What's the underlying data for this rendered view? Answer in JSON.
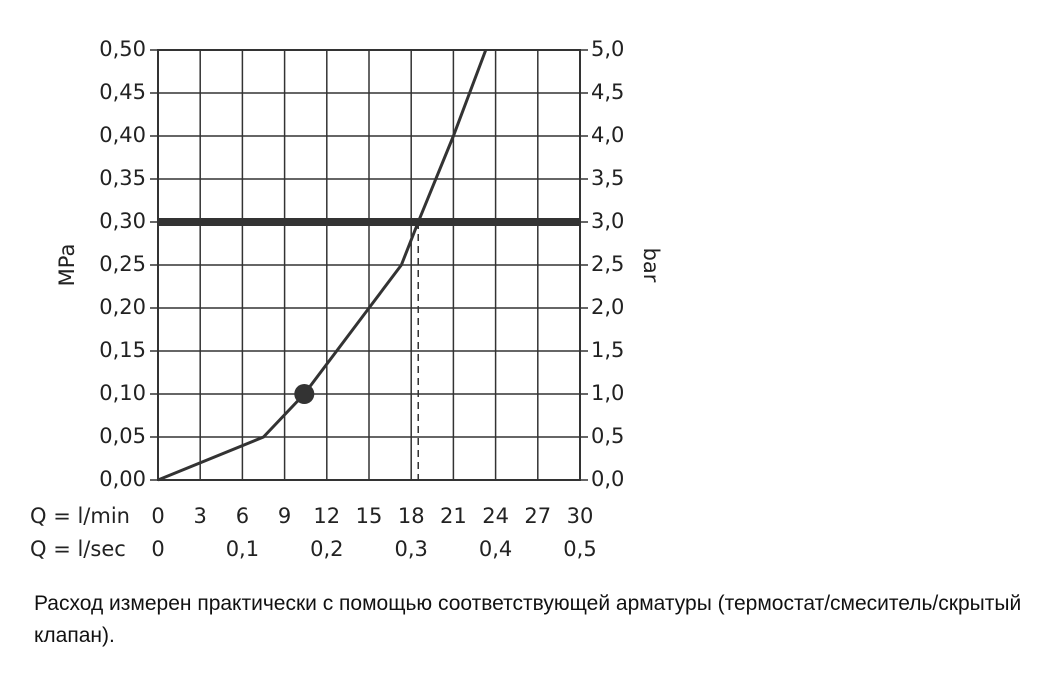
{
  "chart_data": {
    "type": "line",
    "ylabel": "MPa",
    "y2label": "bar",
    "xlabel": "Q = l/min",
    "x2label": "Q = l/sec",
    "x": [
      0,
      7.5,
      10.4,
      15,
      17.3,
      18.5,
      21,
      23.3
    ],
    "series": [
      {
        "color": "#333333",
        "values": [
          0,
          0.05,
          0.1,
          0.2,
          0.25,
          0.3,
          0.4,
          0.5
        ]
      }
    ],
    "highlight": {
      "x": 10.4,
      "y": 0.1
    },
    "reference_line": {
      "x": 18.5,
      "y": 0.3
    },
    "xlim": [
      0,
      30
    ],
    "xticks": [
      0,
      3,
      6,
      9,
      12,
      15,
      18,
      21,
      24,
      27,
      30
    ],
    "x2lim": [
      0,
      0.5
    ],
    "x2ticks": [
      0,
      {
        "value": 0.1,
        "label": "0,1"
      },
      {
        "value": 0.2,
        "label": "0,2"
      },
      {
        "value": 0.3,
        "label": "0,3"
      },
      {
        "value": 0.4,
        "label": "0,4"
      },
      {
        "value": 0.5,
        "label": "0,5"
      }
    ],
    "ylim": [
      0,
      0.5
    ],
    "yticks": [
      {
        "value": 0,
        "label": "0,00"
      },
      {
        "value": 0.05,
        "label": "0,05"
      },
      {
        "value": 0.1,
        "label": "0,10"
      },
      {
        "value": 0.15,
        "label": "0,15"
      },
      {
        "value": 0.2,
        "label": "0,20"
      },
      {
        "value": 0.25,
        "label": "0,25"
      },
      {
        "value": 0.3,
        "label": "0,30"
      },
      {
        "value": 0.35,
        "label": "0,35"
      },
      {
        "value": 0.4,
        "label": "0,40"
      },
      {
        "value": 0.45,
        "label": "0,45"
      },
      {
        "value": 0.5,
        "label": "0,50"
      }
    ],
    "y2lim": [
      0,
      5
    ],
    "y2ticks": [
      {
        "value": 0,
        "label": "0,0"
      },
      {
        "value": 0.5,
        "label": "0,5"
      },
      {
        "value": 1,
        "label": "1,0"
      },
      {
        "value": 1.5,
        "label": "1,5"
      },
      {
        "value": 2,
        "label": "2,0"
      },
      {
        "value": 2.5,
        "label": "2,5"
      },
      {
        "value": 3,
        "label": "3,0"
      },
      {
        "value": 3.5,
        "label": "3,5"
      },
      {
        "value": 4,
        "label": "4,0"
      },
      {
        "value": 4.5,
        "label": "4,5"
      },
      {
        "value": 5,
        "label": "5,0"
      }
    ],
    "grid": true
  },
  "note": "Расход измерен практически с помощью соответствующей арматуры (термостат/смеситель/скрытый клапан)."
}
